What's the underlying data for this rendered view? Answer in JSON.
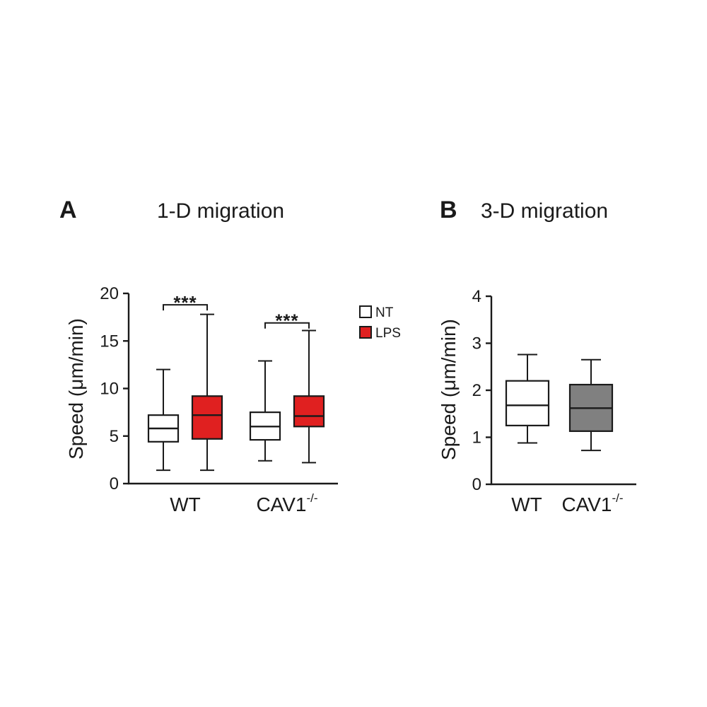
{
  "chart_data": [
    {
      "type": "box",
      "panel": "A",
      "title": "1-D migration",
      "ylabel": "Speed (μm/min)",
      "ylim": [
        0,
        20
      ],
      "yticks": [
        0,
        5,
        10,
        15,
        20
      ],
      "categories": [
        {
          "label": "WT",
          "sup": ""
        },
        {
          "label": "CAV1",
          "sup": "-/-"
        }
      ],
      "legend": {
        "placement": "top-right",
        "entries": [
          {
            "name": "NT",
            "color": "#ffffff"
          },
          {
            "name": "LPS",
            "color": "#e02020"
          }
        ]
      },
      "series": [
        {
          "name": "NT",
          "color": "#ffffff",
          "boxes": [
            {
              "min": 1.4,
              "q1": 4.4,
              "median": 5.8,
              "q3": 7.2,
              "max": 12.0
            },
            {
              "min": 2.4,
              "q1": 4.6,
              "median": 6.0,
              "q3": 7.5,
              "max": 12.9
            }
          ]
        },
        {
          "name": "LPS",
          "color": "#e02020",
          "boxes": [
            {
              "min": 1.4,
              "q1": 4.7,
              "median": 7.2,
              "q3": 9.2,
              "max": 17.8
            },
            {
              "min": 2.2,
              "q1": 6.0,
              "median": 7.1,
              "q3": 9.2,
              "max": 16.1
            }
          ]
        }
      ],
      "annotations": [
        {
          "text": "***",
          "category": 0,
          "y": 18.8
        },
        {
          "text": "***",
          "category": 1,
          "y": 16.9
        }
      ]
    },
    {
      "type": "box",
      "panel": "B",
      "title": "3-D migration",
      "ylabel": "Speed (μm/min)",
      "ylim": [
        0,
        4
      ],
      "yticks": [
        0,
        1,
        2,
        3,
        4
      ],
      "categories": [
        {
          "label": "WT",
          "sup": ""
        },
        {
          "label": "CAV1",
          "sup": "-/-"
        }
      ],
      "boxes": [
        {
          "color": "#ffffff",
          "min": 0.88,
          "q1": 1.25,
          "median": 1.68,
          "q3": 2.2,
          "max": 2.76
        },
        {
          "color": "#808080",
          "min": 0.72,
          "q1": 1.13,
          "median": 1.62,
          "q3": 2.12,
          "max": 2.65
        }
      ]
    }
  ]
}
